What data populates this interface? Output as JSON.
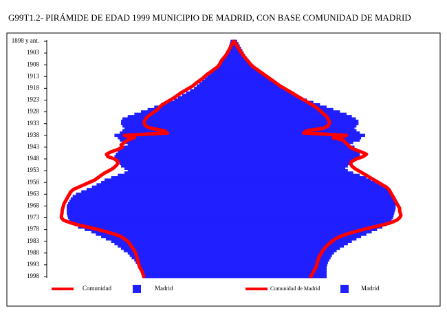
{
  "chart_data": {
    "type": "pyramid",
    "title": "G99T1.2- PIRÁMIDE DE EDAD 1999 MUNICIPIO DE MADRID, CON BASE COMUNIDAD DE MADRID",
    "categories": [
      "1898 y ant.",
      null,
      null,
      null,
      null,
      "1903",
      null,
      null,
      null,
      null,
      "1908",
      null,
      null,
      null,
      null,
      "1913",
      null,
      null,
      null,
      null,
      "1918",
      null,
      null,
      null,
      null,
      "1923",
      null,
      null,
      null,
      null,
      "1928",
      null,
      null,
      null,
      null,
      "1933",
      null,
      null,
      null,
      null,
      "1938",
      null,
      null,
      null,
      null,
      "1943",
      null,
      null,
      null,
      null,
      "1948",
      null,
      null,
      null,
      null,
      "1953",
      null,
      null,
      null,
      null,
      "1958",
      null,
      null,
      null,
      null,
      "1963",
      null,
      null,
      null,
      null,
      "1968",
      null,
      null,
      null,
      null,
      "1973",
      null,
      null,
      null,
      null,
      "1978",
      null,
      null,
      null,
      null,
      "1983",
      null,
      null,
      null,
      null,
      "1988",
      null,
      null,
      null,
      null,
      "1993",
      null,
      null,
      null,
      null,
      "1998"
    ],
    "xlim": [
      0,
      280
    ],
    "series": [
      {
        "name": "Comunidad",
        "color": "#ff0000",
        "side": "left",
        "mark": "line",
        "values": [
          0,
          2,
          4,
          6,
          8,
          10,
          12,
          15,
          18,
          20,
          22,
          25,
          30,
          35,
          40,
          44,
          48,
          53,
          58,
          62,
          68,
          74,
          80,
          85,
          90,
          96,
          102,
          108,
          112,
          115,
          120,
          125,
          130,
          133,
          135,
          135,
          133,
          125,
          105,
          100,
          165,
          150,
          160,
          165,
          170,
          168,
          175,
          185,
          192,
          190,
          180,
          175,
          175,
          178,
          182,
          188,
          195,
          200,
          205,
          210,
          218,
          226,
          234,
          242,
          246,
          248,
          250,
          252,
          254,
          256,
          257,
          258,
          259,
          259,
          260,
          260,
          257,
          248,
          235,
          220,
          205,
          192,
          180,
          170,
          165,
          160,
          157,
          155,
          152,
          150,
          148,
          147,
          146,
          145,
          144,
          143,
          142,
          140,
          138,
          137,
          136
        ]
      },
      {
        "name": "Madrid",
        "color": "#1f1fff",
        "side": "left",
        "mark": "bar",
        "values": [
          5,
          6,
          7,
          8,
          9,
          10,
          12,
          14,
          16,
          18,
          20,
          24,
          28,
          32,
          36,
          40,
          44,
          48,
          52,
          56,
          60,
          66,
          72,
          78,
          84,
          90,
          100,
          110,
          120,
          130,
          140,
          150,
          160,
          168,
          170,
          170,
          168,
          165,
          168,
          172,
          180,
          175,
          172,
          165,
          160,
          170,
          172,
          175,
          178,
          180,
          180,
          178,
          172,
          170,
          165,
          160,
          165,
          175,
          185,
          195,
          200,
          207,
          214,
          222,
          230,
          238,
          243,
          246,
          248,
          250,
          252,
          252,
          252,
          252,
          251,
          250,
          248,
          245,
          240,
          235,
          225,
          215,
          208,
          200,
          193,
          185,
          180,
          175,
          170,
          166,
          160,
          157,
          154,
          150,
          148,
          145,
          143,
          141,
          140,
          138,
          135
        ]
      },
      {
        "name": "Comunidad de Madrid",
        "color": "#ff0000",
        "side": "right",
        "mark": "line",
        "values": [
          0,
          3,
          5,
          7,
          9,
          12,
          14,
          17,
          20,
          23,
          26,
          30,
          35,
          40,
          45,
          50,
          55,
          60,
          65,
          70,
          76,
          82,
          88,
          94,
          100,
          106,
          112,
          118,
          124,
          128,
          132,
          136,
          140,
          142,
          144,
          144,
          142,
          135,
          110,
          105,
          170,
          150,
          165,
          168,
          172,
          175,
          182,
          192,
          200,
          195,
          185,
          178,
          176,
          178,
          182,
          188,
          194,
          200,
          206,
          212,
          218,
          224,
          230,
          234,
          236,
          238,
          240,
          242,
          244,
          246,
          248,
          250,
          250,
          251,
          252,
          250,
          246,
          238,
          225,
          210,
          195,
          182,
          170,
          160,
          153,
          148,
          144,
          140,
          137,
          134,
          132,
          130,
          128,
          127,
          126,
          125,
          124,
          122,
          120,
          118,
          116
        ]
      },
      {
        "name": "Madrid",
        "color": "#1f1fff",
        "side": "right",
        "mark": "bar",
        "values": [
          5,
          7,
          9,
          11,
          13,
          15,
          17,
          19,
          21,
          23,
          26,
          30,
          34,
          38,
          43,
          48,
          53,
          58,
          64,
          70,
          76,
          82,
          88,
          94,
          100,
          110,
          120,
          130,
          140,
          150,
          160,
          170,
          178,
          184,
          188,
          188,
          185,
          182,
          185,
          190,
          198,
          192,
          190,
          180,
          175,
          182,
          185,
          188,
          190,
          190,
          186,
          180,
          176,
          172,
          168,
          172,
          180,
          190,
          200,
          207,
          214,
          220,
          226,
          232,
          236,
          238,
          240,
          242,
          243,
          244,
          244,
          244,
          243,
          242,
          241,
          240,
          238,
          235,
          230,
          224,
          216,
          208,
          200,
          192,
          185,
          178,
          172,
          166,
          160,
          155,
          151,
          148,
          146,
          144,
          142,
          141,
          140,
          140,
          140,
          140,
          140
        ]
      }
    ]
  }
}
